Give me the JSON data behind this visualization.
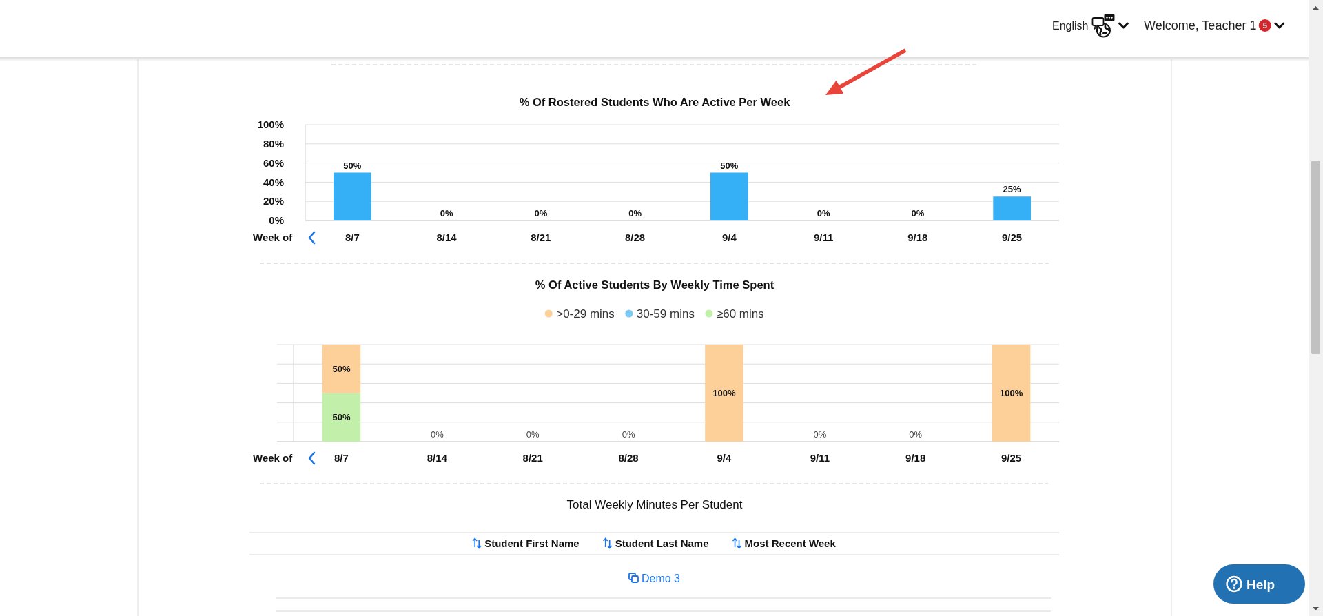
{
  "chart_data": [
    {
      "type": "other",
      "annotations": [
        "English",
        "Welcome, Teacher 1",
        "5",
        "Help"
      ]
    },
    {
      "type": "bar",
      "title": "% Of Rostered Students Who Are Active Per Week",
      "xlabel": "Week of",
      "categories": [
        "8/7",
        "8/14",
        "8/21",
        "8/28",
        "9/4",
        "9/11",
        "9/18",
        "9/25"
      ],
      "values": [
        50,
        0,
        0,
        0,
        50,
        0,
        0,
        25
      ],
      "color": "#35aff5",
      "value_labels": [
        "50%",
        "0%",
        "0%",
        "0%",
        "50%",
        "0%",
        "0%",
        "25%"
      ],
      "ylim": [
        0,
        100
      ],
      "yticks": [
        {
          "value": 0,
          "label": "0%"
        },
        {
          "value": 20,
          "label": "20%"
        },
        {
          "value": 40,
          "label": "40%"
        },
        {
          "value": 60,
          "label": "60%"
        },
        {
          "value": 80,
          "label": "80%"
        },
        {
          "value": 100,
          "label": "100%"
        }
      ],
      "grid": "y"
    },
    {
      "type": "bar",
      "stacked": true,
      "title": "% Of Active Students By Weekly Time Spent",
      "xlabel": "Week of",
      "categories": [
        "8/7",
        "8/14",
        "8/21",
        "8/28",
        "9/4",
        "9/11",
        "9/18",
        "9/25"
      ],
      "series": [
        {
          "name": "≥60 mins",
          "color": "#c2efaa",
          "values": [
            50,
            0,
            0,
            0,
            0,
            0,
            0,
            0
          ],
          "value_labels": [
            "50%",
            null,
            null,
            null,
            null,
            null,
            null,
            null
          ]
        },
        {
          "name": "30-59 mins",
          "color": "#7cc8f5",
          "values": [
            0,
            0,
            0,
            0,
            0,
            0,
            0,
            0
          ]
        },
        {
          "name": ">0-29 mins",
          "color": "#fdd09a",
          "values": [
            50,
            0,
            0,
            0,
            100,
            0,
            0,
            100
          ],
          "value_labels": [
            "50%",
            null,
            null,
            null,
            "100%",
            null,
            null,
            "100%"
          ]
        }
      ],
      "totals": [
        null,
        "0%",
        "0%",
        "0%",
        null,
        "0%",
        "0%",
        null
      ],
      "ylim": [
        0,
        100
      ],
      "yticks": [
        {
          "value": 0,
          "label": null
        },
        {
          "value": 20,
          "label": null
        },
        {
          "value": 40,
          "label": null
        },
        {
          "value": 60,
          "label": null
        },
        {
          "value": 80,
          "label": null
        },
        {
          "value": 100,
          "label": null
        }
      ],
      "tick_labels": "x",
      "grid": "y",
      "legend": "top"
    },
    {
      "type": "other",
      "title": "Total Weekly Minutes Per Student",
      "annotations": [
        "Student First Name",
        "Student Last Name",
        "Most Recent Week",
        "Demo 3"
      ]
    }
  ]
}
